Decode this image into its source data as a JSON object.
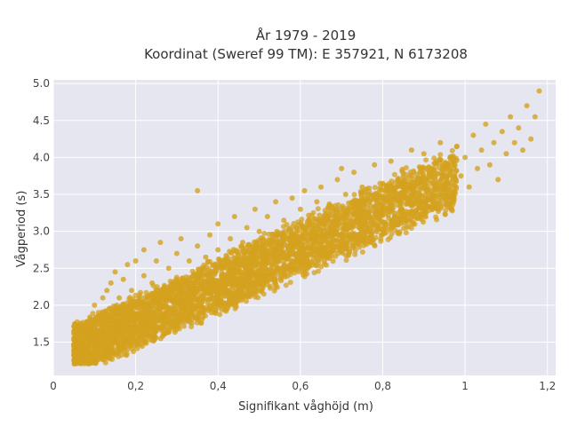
{
  "chart_data": {
    "type": "scatter",
    "title_line1": "År 1979 - 2019",
    "title_line2": "Koordinat (Sweref 99 TM): E 357921, N 6173208",
    "xlabel": "Signifikant våghöjd (m)",
    "ylabel": "Vågperiod (s)",
    "xlim": [
      0,
      1.22
    ],
    "ylim": [
      1.05,
      5.05
    ],
    "x_ticks": [
      0,
      0.2,
      0.4,
      0.6,
      0.8,
      1.0,
      1.2
    ],
    "x_tick_labels": [
      "0",
      "0,2",
      "0,4",
      "0,6",
      "0,8",
      "1",
      "1,2"
    ],
    "y_ticks": [
      1.5,
      2.0,
      2.5,
      3.0,
      3.5,
      4.0,
      4.5,
      5.0
    ],
    "y_tick_labels": [
      "1.5",
      "2.0",
      "2.5",
      "3.0",
      "3.5",
      "4.0",
      "4.5",
      "5.0"
    ],
    "grid": true,
    "legend": "none",
    "marker_color": "#D4A21F",
    "background_color": "#E5E6EF",
    "series": [
      {
        "values_xy": [
          [
            0.05,
            1.25
          ],
          [
            0.05,
            1.45
          ],
          [
            0.06,
            1.35
          ],
          [
            0.07,
            1.55
          ],
          [
            0.08,
            1.3
          ],
          [
            0.08,
            1.5
          ],
          [
            0.09,
            1.25
          ],
          [
            0.1,
            1.4
          ],
          [
            0.1,
            1.75
          ],
          [
            0.1,
            2.0
          ],
          [
            0.11,
            1.3
          ],
          [
            0.11,
            1.9
          ],
          [
            0.12,
            1.5
          ],
          [
            0.12,
            2.1
          ],
          [
            0.13,
            1.7
          ],
          [
            0.13,
            2.2
          ],
          [
            0.14,
            1.45
          ],
          [
            0.14,
            2.3
          ],
          [
            0.15,
            1.8
          ],
          [
            0.15,
            2.45
          ],
          [
            0.16,
            1.6
          ],
          [
            0.16,
            2.1
          ],
          [
            0.17,
            2.35
          ],
          [
            0.17,
            1.75
          ],
          [
            0.18,
            2.55
          ],
          [
            0.18,
            1.9
          ],
          [
            0.19,
            2.2
          ],
          [
            0.2,
            1.85
          ],
          [
            0.2,
            2.6
          ],
          [
            0.21,
            2.05
          ],
          [
            0.22,
            2.4
          ],
          [
            0.22,
            2.75
          ],
          [
            0.23,
            1.95
          ],
          [
            0.24,
            2.3
          ],
          [
            0.25,
            2.6
          ],
          [
            0.25,
            2.1
          ],
          [
            0.26,
            2.85
          ],
          [
            0.27,
            2.25
          ],
          [
            0.28,
            2.5
          ],
          [
            0.29,
            2.15
          ],
          [
            0.3,
            2.7
          ],
          [
            0.3,
            2.35
          ],
          [
            0.31,
            2.9
          ],
          [
            0.32,
            2.25
          ],
          [
            0.33,
            2.6
          ],
          [
            0.34,
            2.4
          ],
          [
            0.35,
            2.8
          ],
          [
            0.35,
            3.55
          ],
          [
            0.36,
            2.3
          ],
          [
            0.37,
            2.65
          ],
          [
            0.38,
            2.95
          ],
          [
            0.39,
            2.45
          ],
          [
            0.4,
            2.75
          ],
          [
            0.4,
            3.1
          ],
          [
            0.41,
            2.4
          ],
          [
            0.42,
            2.6
          ],
          [
            0.43,
            2.9
          ],
          [
            0.44,
            3.2
          ],
          [
            0.45,
            2.55
          ],
          [
            0.46,
            2.85
          ],
          [
            0.47,
            3.05
          ],
          [
            0.48,
            2.6
          ],
          [
            0.49,
            3.3
          ],
          [
            0.5,
            2.75
          ],
          [
            0.5,
            3.0
          ],
          [
            0.51,
            2.5
          ],
          [
            0.52,
            3.2
          ],
          [
            0.53,
            2.85
          ],
          [
            0.54,
            3.4
          ],
          [
            0.55,
            2.95
          ],
          [
            0.56,
            3.15
          ],
          [
            0.57,
            2.7
          ],
          [
            0.58,
            3.45
          ],
          [
            0.59,
            3.05
          ],
          [
            0.6,
            3.3
          ],
          [
            0.6,
            2.85
          ],
          [
            0.61,
            3.55
          ],
          [
            0.62,
            3.15
          ],
          [
            0.63,
            3.0
          ],
          [
            0.64,
            3.4
          ],
          [
            0.65,
            3.6
          ],
          [
            0.66,
            3.1
          ],
          [
            0.67,
            3.35
          ],
          [
            0.68,
            2.95
          ],
          [
            0.69,
            3.7
          ],
          [
            0.7,
            3.25
          ],
          [
            0.71,
            3.5
          ],
          [
            0.72,
            3.1
          ],
          [
            0.73,
            3.8
          ],
          [
            0.74,
            3.35
          ],
          [
            0.75,
            3.6
          ],
          [
            0.76,
            3.2
          ],
          [
            0.77,
            3.45
          ],
          [
            0.78,
            3.9
          ],
          [
            0.79,
            3.3
          ],
          [
            0.8,
            3.65
          ],
          [
            0.81,
            3.4
          ],
          [
            0.82,
            3.95
          ],
          [
            0.83,
            3.5
          ],
          [
            0.84,
            3.25
          ],
          [
            0.85,
            3.75
          ],
          [
            0.86,
            3.55
          ],
          [
            0.87,
            4.1
          ],
          [
            0.88,
            3.4
          ],
          [
            0.89,
            3.8
          ],
          [
            0.9,
            3.6
          ],
          [
            0.9,
            4.05
          ],
          [
            0.91,
            3.45
          ],
          [
            0.92,
            3.85
          ],
          [
            0.93,
            3.65
          ],
          [
            0.94,
            4.2
          ],
          [
            0.95,
            3.5
          ],
          [
            0.96,
            3.9
          ],
          [
            0.97,
            3.7
          ],
          [
            0.98,
            4.15
          ],
          [
            0.99,
            3.75
          ],
          [
            1.0,
            4.0
          ],
          [
            1.01,
            3.6
          ],
          [
            1.02,
            4.3
          ],
          [
            1.03,
            3.85
          ],
          [
            1.04,
            4.1
          ],
          [
            1.05,
            4.45
          ],
          [
            1.06,
            3.9
          ],
          [
            1.07,
            4.2
          ],
          [
            1.08,
            3.7
          ],
          [
            1.09,
            4.35
          ],
          [
            1.1,
            4.05
          ],
          [
            1.11,
            4.55
          ],
          [
            1.12,
            4.2
          ],
          [
            1.13,
            4.4
          ],
          [
            1.14,
            4.1
          ],
          [
            1.15,
            4.7
          ],
          [
            1.16,
            4.25
          ],
          [
            1.17,
            4.55
          ],
          [
            1.18,
            4.9
          ],
          [
            0.66,
            2.7
          ],
          [
            0.58,
            2.55
          ],
          [
            0.47,
            2.35
          ],
          [
            0.42,
            2.2
          ],
          [
            0.7,
            3.85
          ]
        ]
      }
    ]
  }
}
